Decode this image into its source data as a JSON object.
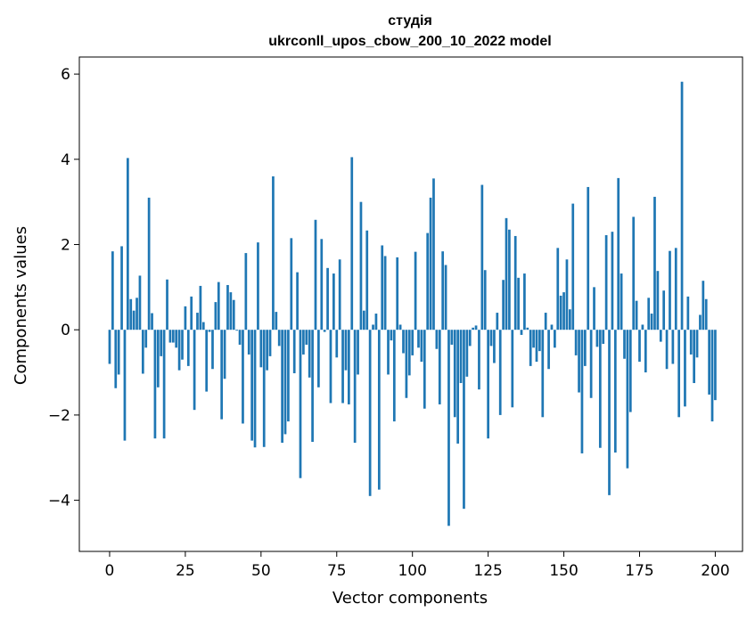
{
  "chart_data": {
    "type": "bar",
    "title_line1": "студія",
    "title_line2": "ukrconll_upos_cbow_200_10_2022 model",
    "xlabel": "Vector components",
    "ylabel": "Components values",
    "xlim": [
      -10,
      209
    ],
    "ylim": [
      -5.2,
      6.4
    ],
    "xticks": [
      0,
      25,
      50,
      75,
      100,
      125,
      150,
      175,
      200
    ],
    "yticks": [
      -4,
      -2,
      0,
      2,
      4,
      6
    ],
    "ytick_labels": [
      "−4",
      "−2",
      "0",
      "2",
      "4",
      "6"
    ],
    "bar_color": "#1f77b4",
    "grid": false,
    "values": [
      -0.8,
      1.84,
      -1.37,
      -1.05,
      1.96,
      -2.6,
      4.03,
      0.72,
      0.45,
      0.75,
      1.27,
      -1.03,
      -0.42,
      3.1,
      0.39,
      -2.55,
      -1.35,
      -0.62,
      -2.55,
      1.18,
      -0.3,
      -0.3,
      -0.42,
      -0.95,
      -0.7,
      0.55,
      -0.85,
      0.78,
      -1.88,
      0.4,
      1.03,
      0.18,
      -1.45,
      -0.05,
      -0.92,
      0.65,
      1.12,
      -2.1,
      -1.15,
      1.05,
      0.88,
      0.7,
      -0.02,
      -0.35,
      -2.2,
      1.8,
      -0.58,
      -2.6,
      -2.76,
      2.05,
      -0.88,
      -2.75,
      -0.95,
      -0.62,
      3.6,
      0.42,
      -0.38,
      -2.65,
      -2.45,
      -2.15,
      2.15,
      -1.02,
      1.35,
      -3.48,
      -0.58,
      -0.35,
      -1.12,
      -2.63,
      2.58,
      -1.35,
      2.13,
      -0.05,
      1.45,
      -1.72,
      1.32,
      -0.65,
      1.65,
      -1.72,
      -0.95,
      -1.75,
      4.05,
      -2.65,
      -1.05,
      3.0,
      0.45,
      2.33,
      -3.9,
      0.12,
      0.38,
      -3.75,
      1.98,
      1.73,
      -1.05,
      -0.25,
      -2.15,
      1.7,
      0.12,
      -0.55,
      -1.6,
      -1.07,
      -0.6,
      1.83,
      -0.42,
      -0.75,
      -1.85,
      2.27,
      3.1,
      3.55,
      -0.45,
      -1.75,
      1.84,
      1.52,
      -4.6,
      -0.35,
      -2.05,
      -2.67,
      -1.25,
      -4.2,
      -1.1,
      -0.38,
      0.05,
      0.1,
      -1.4,
      3.4,
      1.4,
      -2.55,
      -0.38,
      -0.78,
      0.4,
      -2.0,
      1.17,
      2.62,
      2.35,
      -1.82,
      2.2,
      1.22,
      -0.12,
      1.32,
      0.05,
      -0.85,
      -0.42,
      -0.75,
      -0.5,
      -2.05,
      0.4,
      -0.92,
      0.12,
      -0.42,
      1.92,
      0.8,
      0.88,
      1.65,
      0.48,
      2.96,
      -0.6,
      -1.47,
      -2.9,
      -0.85,
      3.35,
      -1.6,
      1.0,
      -0.4,
      -2.77,
      -0.33,
      2.22,
      -3.88,
      2.3,
      -2.88,
      3.56,
      1.32,
      -0.68,
      -3.25,
      -1.93,
      2.65,
      0.68,
      -0.75,
      0.12,
      -1.0,
      0.75,
      0.38,
      3.12,
      1.38,
      -0.28,
      0.92,
      -0.92,
      1.85,
      -0.8,
      1.92,
      -2.05,
      5.82,
      -1.8,
      0.78,
      -0.58,
      -1.25,
      -0.65,
      0.35,
      1.15,
      0.72,
      -1.52,
      -2.15,
      -1.65
    ]
  }
}
